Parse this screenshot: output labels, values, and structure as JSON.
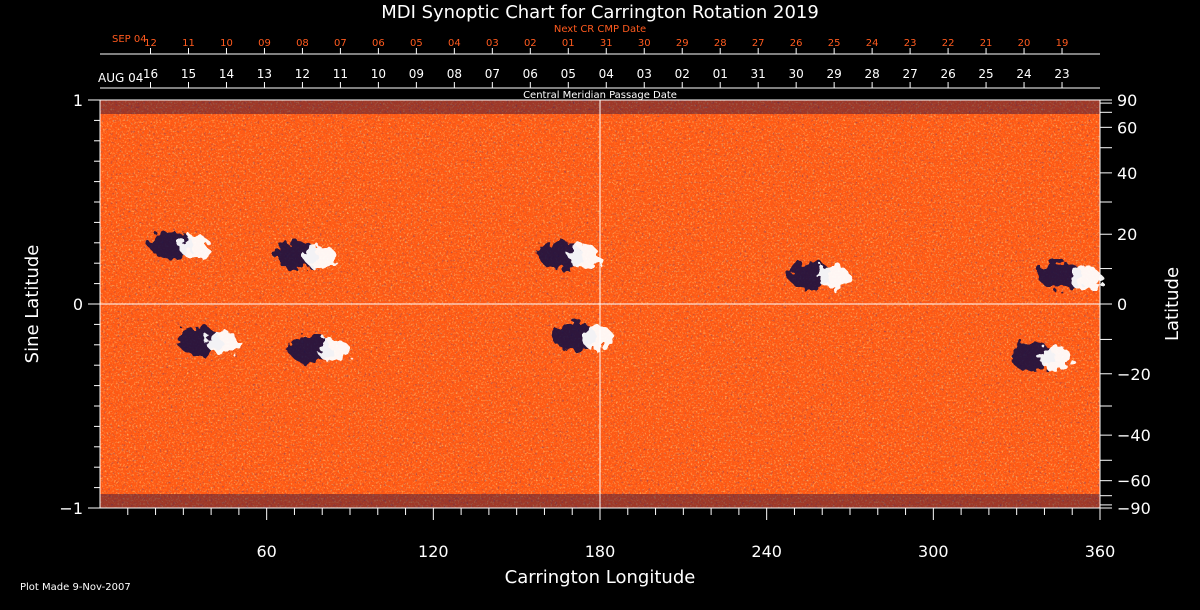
{
  "chart_data": {
    "type": "heatmap",
    "title": "MDI Synoptic Chart for Carrington Rotation 2019",
    "xlabel": "Carrington Longitude",
    "ylabel_left": "Sine Latitude",
    "ylabel_right": "Latitude",
    "xlim": [
      0,
      360
    ],
    "ylim": [
      -1,
      1
    ],
    "x_ticks": [
      60,
      120,
      180,
      240,
      300,
      360
    ],
    "y_ticks_left": [
      {
        "value": 1,
        "label": "1"
      },
      {
        "value": 0,
        "label": "0"
      },
      {
        "value": -1,
        "label": "−1"
      }
    ],
    "y_ticks_right": [
      {
        "deg": 90,
        "label": "90"
      },
      {
        "deg": 60,
        "label": "60"
      },
      {
        "deg": 40,
        "label": "40"
      },
      {
        "deg": 20,
        "label": "20"
      },
      {
        "deg": 0,
        "label": "0"
      },
      {
        "deg": -20,
        "label": "−20"
      },
      {
        "deg": -40,
        "label": "−40"
      },
      {
        "deg": -60,
        "label": "−60"
      },
      {
        "deg": -90,
        "label": "−90"
      }
    ],
    "top_axis": {
      "label": "Central Meridian Passage Date",
      "start_label": "AUG 04",
      "dates": [
        "16",
        "15",
        "14",
        "13",
        "12",
        "11",
        "10",
        "09",
        "08",
        "07",
        "06",
        "05",
        "04",
        "03",
        "02",
        "01",
        "31",
        "30",
        "29",
        "28",
        "27",
        "26",
        "25",
        "24",
        "23"
      ]
    },
    "next_axis": {
      "label": "Next CR CMP Date",
      "start_label": "SEP 04",
      "dates": [
        "12",
        "11",
        "10",
        "09",
        "08",
        "07",
        "06",
        "05",
        "04",
        "03",
        "02",
        "01",
        "31",
        "30",
        "29",
        "28",
        "27",
        "26",
        "25",
        "24",
        "23",
        "22",
        "21",
        "20",
        "19"
      ]
    },
    "colors": {
      "positive": "#ffffff",
      "background_field": "#ff5a14",
      "negative": "#140a40",
      "next_axis": "#ff5a1e"
    },
    "active_regions": [
      {
        "lon": 30,
        "sinlat": 0.29,
        "polarity": "bipolar"
      },
      {
        "lon": 75,
        "sinlat": 0.24,
        "polarity": "bipolar"
      },
      {
        "lon": 170,
        "sinlat": 0.24,
        "polarity": "bipolar"
      },
      {
        "lon": 260,
        "sinlat": 0.14,
        "polarity": "bipolar"
      },
      {
        "lon": 350,
        "sinlat": 0.14,
        "polarity": "bipolar"
      },
      {
        "lon": 40,
        "sinlat": -0.18,
        "polarity": "bipolar"
      },
      {
        "lon": 80,
        "sinlat": -0.22,
        "polarity": "bipolar"
      },
      {
        "lon": 175,
        "sinlat": -0.16,
        "polarity": "bipolar"
      },
      {
        "lon": 340,
        "sinlat": -0.26,
        "polarity": "bipolar"
      }
    ]
  },
  "footer": {
    "plot_made": "Plot Made  9-Nov-2007"
  }
}
